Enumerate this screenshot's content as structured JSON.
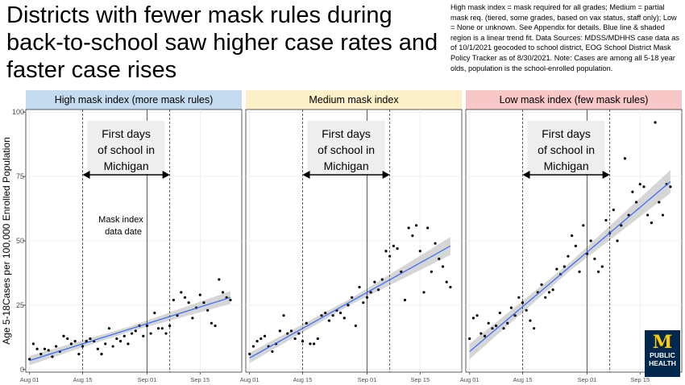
{
  "title": "Districts with fewer mask rules during back-to-school saw higher case rates and faster case rises",
  "note": "High mask index = mask required for all grades; Medium = partial mask req. (tiered, some grades, based on vax status, staff only); Low = None or unknown.  See Appendix for details. Blue line & shaded region is a linear trend fit. Data Sources:  MDSS/MDHHS  case data as of 10/1/2021 geocoded to school district, EOG School District Mask Policy Tracker as of 8/30/2021.  Note: Cases are among all 5-18 year olds, population is the school-enrolled population.",
  "logo": {
    "line1": "PUBLIC",
    "line2": "HEALTH"
  },
  "colors": {
    "panel_bg": "#ffffff",
    "grid": "#ebebeb",
    "trend": "#3366ff",
    "band": "#c8c8c8",
    "points": "#000000"
  },
  "chart_data": {
    "type": "scatter",
    "ylabel": "Age 5-18Cases per 100,000 Enrolled Population",
    "ylim": [
      -1,
      101
    ],
    "yticks": [
      0,
      25,
      50,
      75,
      100
    ],
    "x_axis": {
      "start": "2021-07-31",
      "end": "2021-09-26",
      "ticks": [
        "Aug 01",
        "Aug 15",
        "Sep 01",
        "Sep 15"
      ],
      "tick_dates": [
        "2021-08-01",
        "2021-08-15",
        "2021-09-01",
        "2021-09-15"
      ]
    },
    "grid": true,
    "annotations": {
      "first_days_text": "First days of school in Michigan",
      "first_days_start": "2021-08-15",
      "first_days_end": "2021-09-07",
      "mask_index_text": "Mask index data date",
      "mask_index_date": "2021-08-30",
      "solid_line_date": "2021-09-01"
    },
    "panels": [
      {
        "label": "High mask index (more mask rules)",
        "header_color": "#c5dcf0",
        "trend": {
          "start": 3.5,
          "end": 28
        },
        "band_halfwidth": [
          1.8,
          1.0,
          2.5
        ],
        "points": [
          [
            "2021-08-01",
            4
          ],
          [
            "2021-08-02",
            10
          ],
          [
            "2021-08-03",
            8
          ],
          [
            "2021-08-04",
            6
          ],
          [
            "2021-08-05",
            8
          ],
          [
            "2021-08-06",
            7.5
          ],
          [
            "2021-08-07",
            5
          ],
          [
            "2021-08-08",
            9
          ],
          [
            "2021-08-09",
            7
          ],
          [
            "2021-08-10",
            13
          ],
          [
            "2021-08-11",
            12
          ],
          [
            "2021-08-12",
            10
          ],
          [
            "2021-08-13",
            11
          ],
          [
            "2021-08-14",
            6
          ],
          [
            "2021-08-15",
            9
          ],
          [
            "2021-08-16",
            11
          ],
          [
            "2021-08-17",
            12
          ],
          [
            "2021-08-18",
            11
          ],
          [
            "2021-08-19",
            8
          ],
          [
            "2021-08-20",
            6
          ],
          [
            "2021-08-21",
            10
          ],
          [
            "2021-08-22",
            16
          ],
          [
            "2021-08-23",
            9
          ],
          [
            "2021-08-24",
            12
          ],
          [
            "2021-08-25",
            11
          ],
          [
            "2021-08-26",
            13
          ],
          [
            "2021-08-27",
            10
          ],
          [
            "2021-08-28",
            14
          ],
          [
            "2021-08-29",
            15
          ],
          [
            "2021-08-30",
            17
          ],
          [
            "2021-08-31",
            13
          ],
          [
            "2021-09-01",
            17
          ],
          [
            "2021-09-02",
            14
          ],
          [
            "2021-09-03",
            22
          ],
          [
            "2021-09-04",
            16
          ],
          [
            "2021-09-05",
            16
          ],
          [
            "2021-09-06",
            14
          ],
          [
            "2021-09-07",
            17
          ],
          [
            "2021-09-08",
            27
          ],
          [
            "2021-09-09",
            21
          ],
          [
            "2021-09-10",
            30
          ],
          [
            "2021-09-11",
            28
          ],
          [
            "2021-09-12",
            26
          ],
          [
            "2021-09-13",
            20
          ],
          [
            "2021-09-14",
            24
          ],
          [
            "2021-09-15",
            29
          ],
          [
            "2021-09-16",
            26
          ],
          [
            "2021-09-17",
            23
          ],
          [
            "2021-09-18",
            18
          ],
          [
            "2021-09-19",
            17
          ],
          [
            "2021-09-20",
            35
          ],
          [
            "2021-09-21",
            30
          ],
          [
            "2021-09-22",
            28
          ],
          [
            "2021-09-23",
            27
          ]
        ]
      },
      {
        "label": "Medium mask index",
        "header_color": "#fdf0c8",
        "trend": {
          "start": 4.5,
          "end": 48
        },
        "band_halfwidth": [
          2.0,
          1.2,
          3.5
        ],
        "points": [
          [
            "2021-08-01",
            6
          ],
          [
            "2021-08-02",
            9
          ],
          [
            "2021-08-03",
            11
          ],
          [
            "2021-08-04",
            12
          ],
          [
            "2021-08-05",
            13
          ],
          [
            "2021-08-06",
            9
          ],
          [
            "2021-08-07",
            7
          ],
          [
            "2021-08-08",
            10
          ],
          [
            "2021-08-09",
            15
          ],
          [
            "2021-08-10",
            21
          ],
          [
            "2021-08-11",
            14
          ],
          [
            "2021-08-12",
            15
          ],
          [
            "2021-08-13",
            12
          ],
          [
            "2021-08-14",
            14
          ],
          [
            "2021-08-15",
            11
          ],
          [
            "2021-08-16",
            18
          ],
          [
            "2021-08-17",
            10
          ],
          [
            "2021-08-18",
            10
          ],
          [
            "2021-08-19",
            12
          ],
          [
            "2021-08-20",
            21
          ],
          [
            "2021-08-21",
            22
          ],
          [
            "2021-08-22",
            19
          ],
          [
            "2021-08-23",
            21
          ],
          [
            "2021-08-24",
            23
          ],
          [
            "2021-08-25",
            22
          ],
          [
            "2021-08-26",
            20
          ],
          [
            "2021-08-27",
            25
          ],
          [
            "2021-08-28",
            28
          ],
          [
            "2021-08-29",
            17
          ],
          [
            "2021-08-30",
            32
          ],
          [
            "2021-08-31",
            26
          ],
          [
            "2021-09-01",
            28
          ],
          [
            "2021-09-02",
            30
          ],
          [
            "2021-09-03",
            34
          ],
          [
            "2021-09-04",
            31
          ],
          [
            "2021-09-05",
            35
          ],
          [
            "2021-09-06",
            46
          ],
          [
            "2021-09-07",
            44
          ],
          [
            "2021-09-08",
            48
          ],
          [
            "2021-09-09",
            47
          ],
          [
            "2021-09-10",
            38
          ],
          [
            "2021-09-11",
            27
          ],
          [
            "2021-09-12",
            55
          ],
          [
            "2021-09-13",
            52
          ],
          [
            "2021-09-14",
            56
          ],
          [
            "2021-09-15",
            46
          ],
          [
            "2021-09-16",
            30
          ],
          [
            "2021-09-17",
            55
          ],
          [
            "2021-09-18",
            38
          ],
          [
            "2021-09-19",
            49
          ],
          [
            "2021-09-20",
            43
          ],
          [
            "2021-09-21",
            40
          ],
          [
            "2021-09-22",
            34
          ],
          [
            "2021-09-23",
            32
          ]
        ]
      },
      {
        "label": "Low mask index (few mask rules)",
        "header_color": "#f8c7c7",
        "trend": {
          "start": 7,
          "end": 73
        },
        "band_halfwidth": [
          3.0,
          1.6,
          4.5
        ],
        "points": [
          [
            "2021-08-01",
            12
          ],
          [
            "2021-08-02",
            20
          ],
          [
            "2021-08-03",
            21
          ],
          [
            "2021-08-04",
            14
          ],
          [
            "2021-08-05",
            13
          ],
          [
            "2021-08-06",
            18
          ],
          [
            "2021-08-07",
            16
          ],
          [
            "2021-08-08",
            17
          ],
          [
            "2021-08-09",
            22
          ],
          [
            "2021-08-10",
            16
          ],
          [
            "2021-08-11",
            18
          ],
          [
            "2021-08-12",
            24
          ],
          [
            "2021-08-13",
            21
          ],
          [
            "2021-08-14",
            28
          ],
          [
            "2021-08-15",
            26
          ],
          [
            "2021-08-16",
            23
          ],
          [
            "2021-08-17",
            19
          ],
          [
            "2021-08-18",
            16
          ],
          [
            "2021-08-19",
            30
          ],
          [
            "2021-08-20",
            33
          ],
          [
            "2021-08-21",
            28
          ],
          [
            "2021-08-22",
            30
          ],
          [
            "2021-08-23",
            31
          ],
          [
            "2021-08-24",
            39
          ],
          [
            "2021-08-25",
            37
          ],
          [
            "2021-08-26",
            40
          ],
          [
            "2021-08-27",
            44
          ],
          [
            "2021-08-28",
            52
          ],
          [
            "2021-08-29",
            48
          ],
          [
            "2021-08-30",
            38
          ],
          [
            "2021-08-31",
            56
          ],
          [
            "2021-09-01",
            45
          ],
          [
            "2021-09-02",
            50
          ],
          [
            "2021-09-03",
            43
          ],
          [
            "2021-09-04",
            38
          ],
          [
            "2021-09-05",
            40
          ],
          [
            "2021-09-06",
            58
          ],
          [
            "2021-09-07",
            53
          ],
          [
            "2021-09-08",
            62
          ],
          [
            "2021-09-09",
            50
          ],
          [
            "2021-09-10",
            56
          ],
          [
            "2021-09-11",
            82
          ],
          [
            "2021-09-12",
            60
          ],
          [
            "2021-09-13",
            69
          ],
          [
            "2021-09-14",
            65
          ],
          [
            "2021-09-15",
            72
          ],
          [
            "2021-09-16",
            71
          ],
          [
            "2021-09-17",
            60
          ],
          [
            "2021-09-18",
            57
          ],
          [
            "2021-09-19",
            96
          ],
          [
            "2021-09-20",
            65
          ],
          [
            "2021-09-21",
            60
          ],
          [
            "2021-09-22",
            72
          ],
          [
            "2021-09-23",
            71
          ]
        ]
      }
    ]
  }
}
